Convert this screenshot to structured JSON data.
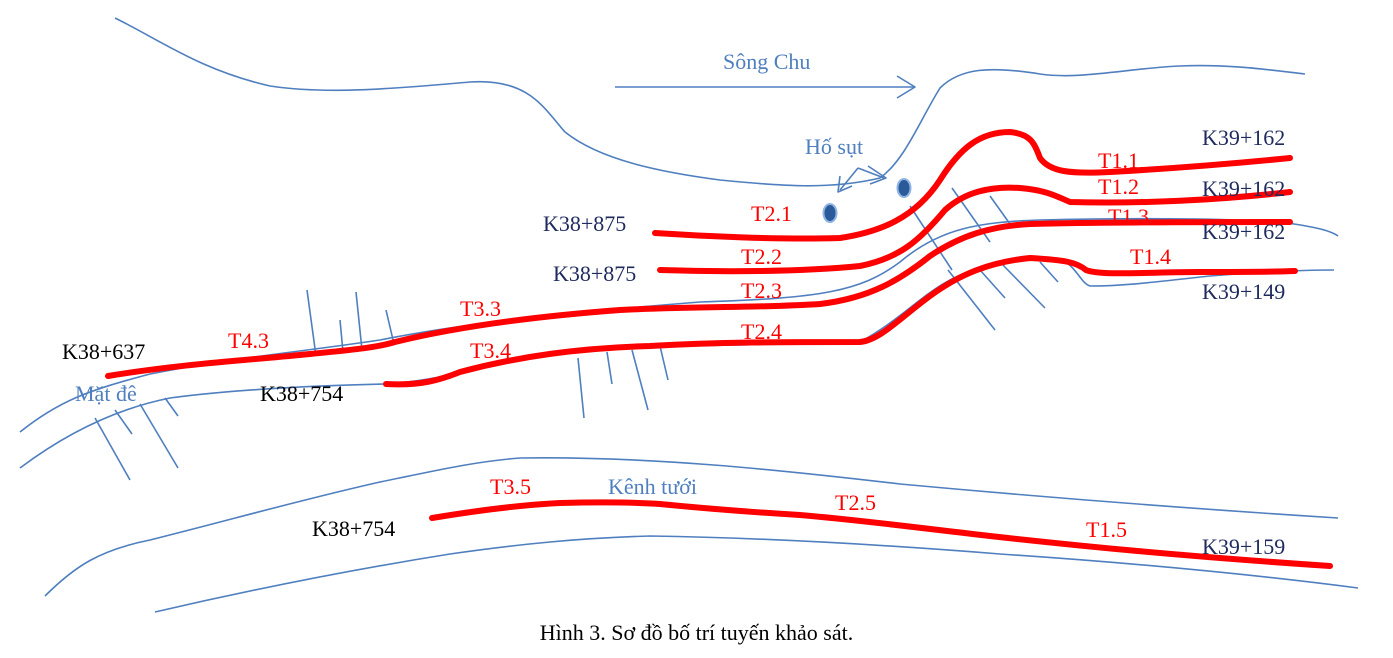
{
  "labels": {
    "river": "Sông Chu",
    "landslide": "Hố sụt",
    "dike_surface": "Mặt đê",
    "canal": "Kênh tưới"
  },
  "lines": {
    "T1_1": "T1.1",
    "T1_2": "T1.2",
    "T1_3": "T1.3",
    "T1_4": "T1.4",
    "T1_5": "T1.5",
    "T2_1": "T2.1",
    "T2_2": "T2.2",
    "T2_3": "T2.3",
    "T2_4": "T2.4",
    "T2_5": "T2.5",
    "T3_3": "T3.3",
    "T3_4": "T3.4",
    "T3_5": "T3.5",
    "T4_3": "T4.3"
  },
  "stations": {
    "s1": "K39+162",
    "s2": "K39+162",
    "s3": "K39+162",
    "s4": "K39+149",
    "s5": "K38+875",
    "s6": "K38+875",
    "s7": "K38+637",
    "s8": "K38+754",
    "s9": "K38+754",
    "s10": "K39+159"
  },
  "caption": "Hình 3. Sơ đồ bố trí tuyến khảo sát.",
  "colors": {
    "survey_line": "#ff0000",
    "terrain": "#4f7fbf",
    "station_dark": "#1f2a5e"
  }
}
